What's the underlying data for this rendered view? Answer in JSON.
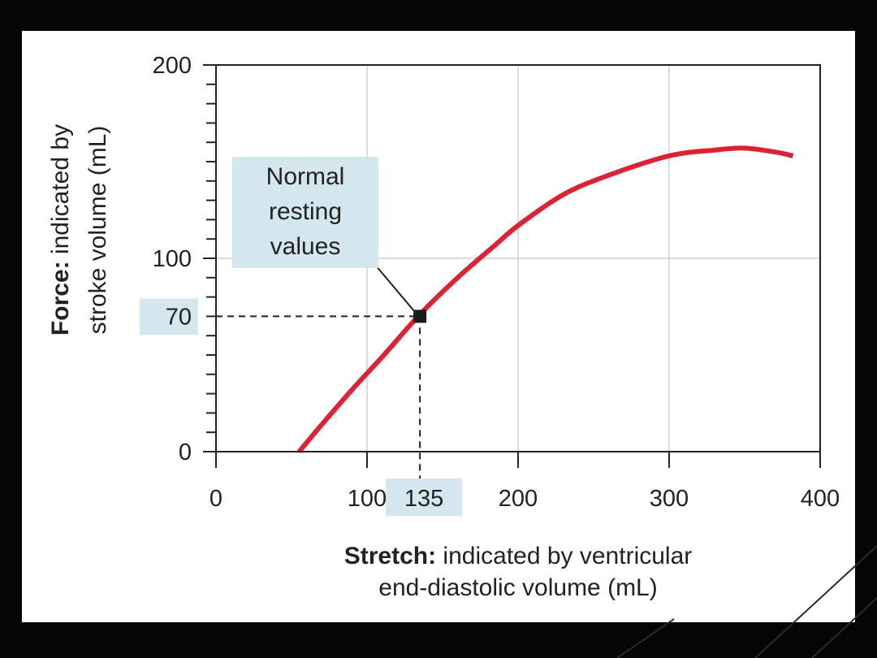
{
  "colors": {
    "curve": "#dd2234",
    "highlight": "#d4e6ee",
    "grid": "#cfcfcf",
    "background": "#050505",
    "panel": "#ffffff"
  },
  "chart_data": {
    "type": "line",
    "title": "",
    "xlabel_bold": "Stretch:",
    "xlabel_rest_line1": " indicated by ventricular",
    "xlabel_line2": "end-diastolic volume (mL)",
    "ylabel_bold": "Force:",
    "ylabel_rest_line1": " indicated by",
    "ylabel_line2": "stroke volume (mL)",
    "xlim": [
      0,
      400
    ],
    "ylim": [
      0,
      200
    ],
    "x_ticks": [
      {
        "value": 0,
        "label": "0"
      },
      {
        "value": 100,
        "label": "100"
      },
      {
        "value": 135,
        "label": "135",
        "highlighted": true
      },
      {
        "value": 200,
        "label": "200"
      },
      {
        "value": 300,
        "label": "300"
      },
      {
        "value": 400,
        "label": "400"
      }
    ],
    "y_ticks": [
      {
        "value": 0,
        "label": "0"
      },
      {
        "value": 70,
        "label": "70",
        "highlighted": true
      },
      {
        "value": 100,
        "label": "100"
      },
      {
        "value": 200,
        "label": "200"
      }
    ],
    "y_minor_step": 10,
    "x_grid": [
      100,
      200,
      300
    ],
    "y_grid": [
      100
    ],
    "grid": true,
    "series": [
      {
        "x": [
          55,
          70,
          90,
          110,
          135,
          160,
          185,
          200,
          230,
          260,
          300,
          330,
          350,
          370,
          382
        ],
        "y": [
          0,
          14,
          32,
          49,
          71,
          90,
          107,
          117,
          133,
          143,
          153,
          156,
          157,
          155,
          153
        ]
      }
    ],
    "annotation": {
      "lines": [
        "Normal",
        "resting",
        "values"
      ],
      "point": {
        "x": 135,
        "y": 70
      }
    }
  }
}
